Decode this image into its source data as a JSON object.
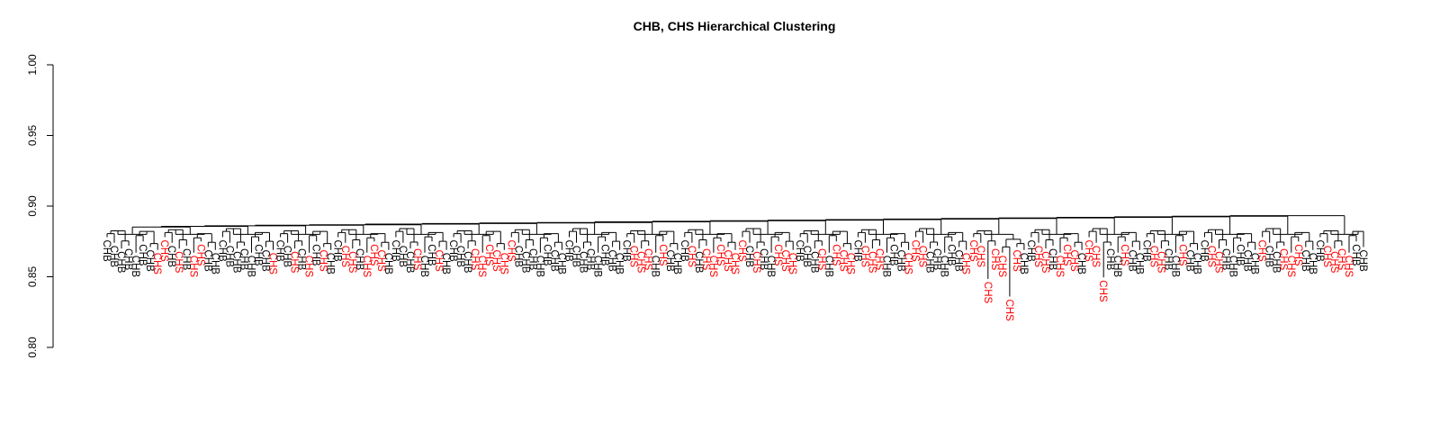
{
  "chart_data": {
    "type": "dendrogram",
    "title": "CHB, CHS Hierarchical Clustering",
    "xlabel": "",
    "ylabel": "",
    "ylim": [
      0.8,
      1.0
    ],
    "y_ticks": [
      0.8,
      0.85,
      0.9,
      0.95,
      1.0
    ],
    "y_tick_labels": [
      "0.80",
      "0.85",
      "0.90",
      "0.95",
      "1.00"
    ],
    "root_height": 0.8815,
    "groups": [
      {
        "name": "CHB",
        "color": "#000000"
      },
      {
        "name": "CHS",
        "color": "#ff0000"
      }
    ],
    "leaves": [
      "CHB",
      "CHB",
      "CHB",
      "CHB",
      "CHB",
      "CHB",
      "CHB",
      "CHS",
      "CHS",
      "CHB",
      "CHS",
      "CHB",
      "CHS",
      "CHS",
      "CHB",
      "CHB",
      "CHB",
      "CHB",
      "CHB",
      "CHB",
      "CHB",
      "CHB",
      "CHB",
      "CHS",
      "CHB",
      "CHB",
      "CHS",
      "CHB",
      "CHS",
      "CHB",
      "CHS",
      "CHB",
      "CHB",
      "CHS",
      "CHS",
      "CHB",
      "CHS",
      "CHS",
      "CHS",
      "CHB",
      "CHB",
      "CHB",
      "CHB",
      "CHS",
      "CHB",
      "CHB",
      "CHS",
      "CHB",
      "CHB",
      "CHB",
      "CHB",
      "CHS",
      "CHS",
      "CHS",
      "CHS",
      "CHS",
      "CHS",
      "CHB",
      "CHB",
      "CHB",
      "CHB",
      "CHB",
      "CHB",
      "CHB",
      "CHB",
      "CHB",
      "CHB",
      "CHB",
      "CHB",
      "CHB",
      "CHB",
      "CHB",
      "CHB",
      "CHS",
      "CHS",
      "CHS",
      "CHB",
      "CHS",
      "CHB",
      "CHB",
      "CHB",
      "CHS",
      "CHB",
      "CHS",
      "CHS",
      "CHS",
      "CHS",
      "CHS",
      "CHS",
      "CHB",
      "CHS",
      "CHB",
      "CHB",
      "CHS",
      "CHS",
      "CHS",
      "CHB",
      "CHB",
      "CHB",
      "CHS",
      "CHB",
      "CHS",
      "CHS",
      "CHS",
      "CHB",
      "CHS",
      "CHS",
      "CHS",
      "CHB",
      "CHB",
      "CHB",
      "CHS",
      "CHS",
      "CHS",
      "CHB",
      "CHB",
      "CHB",
      "CHB",
      "CHB",
      "CHS",
      "CHS",
      "CHS",
      "CHS",
      "CHS",
      "CHS",
      "CHS",
      "CHS",
      "CHB",
      "CHB",
      "CHS",
      "CHS",
      "CHB",
      "CHS",
      "CHS",
      "CHS",
      "CHB",
      "CHS",
      "CHS",
      "CHS",
      "CHB",
      "CHB",
      "CHS",
      "CHB",
      "CHB",
      "CHB",
      "CHS",
      "CHS",
      "CHB",
      "CHB",
      "CHS",
      "CHB",
      "CHB",
      "CHB",
      "CHS",
      "CHS",
      "CHB",
      "CHB",
      "CHB",
      "CHB",
      "CHB",
      "CHS",
      "CHB",
      "CHB",
      "CHS",
      "CHS",
      "CHS",
      "CHB",
      "CHB",
      "CHB",
      "CHS",
      "CHS",
      "CHS",
      "CHS",
      "CHB",
      "CHB"
    ],
    "special_leaves": [
      {
        "index": 122,
        "height": 0.8485
      },
      {
        "index": 125,
        "height": 0.836
      },
      {
        "index": 138,
        "height": 0.8495
      }
    ],
    "leaf_height_pattern": [
      0.878,
      0.874,
      0.87,
      0.872,
      0.867,
      0.875,
      0.871,
      0.869
    ]
  }
}
